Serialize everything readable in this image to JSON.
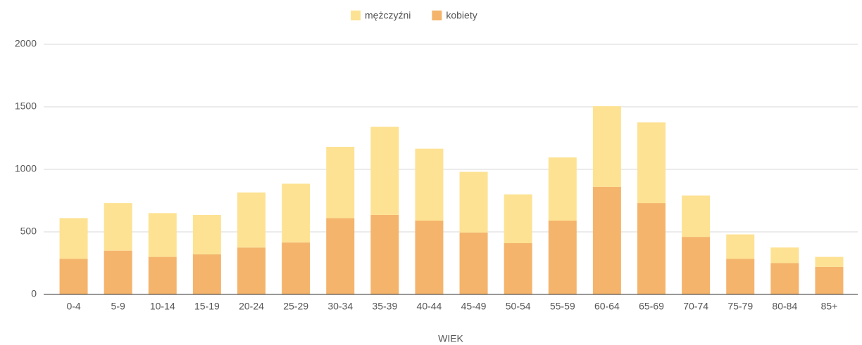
{
  "chart_data": {
    "type": "stacked_bar",
    "xlabel": "WIEK",
    "categories": [
      "0-4",
      "5-9",
      "10-14",
      "15-19",
      "20-24",
      "25-29",
      "30-34",
      "35-39",
      "40-44",
      "45-49",
      "50-54",
      "55-59",
      "60-64",
      "65-69",
      "70-74",
      "75-79",
      "80-84",
      "85+"
    ],
    "series": [
      {
        "name": "mężczyźni",
        "color": "#fde293",
        "values": [
          325,
          380,
          350,
          315,
          440,
          470,
          570,
          705,
          575,
          485,
          390,
          505,
          645,
          645,
          330,
          195,
          125,
          80
        ]
      },
      {
        "name": "kobiety",
        "color": "#f4b46c",
        "values": [
          285,
          350,
          300,
          320,
          375,
          415,
          610,
          635,
          590,
          495,
          410,
          590,
          860,
          730,
          460,
          285,
          250,
          220
        ]
      }
    ],
    "ylim": [
      0,
      2000
    ],
    "yticks": [
      0,
      500,
      1000,
      1500,
      2000
    ],
    "grid": true,
    "legend": "top"
  }
}
